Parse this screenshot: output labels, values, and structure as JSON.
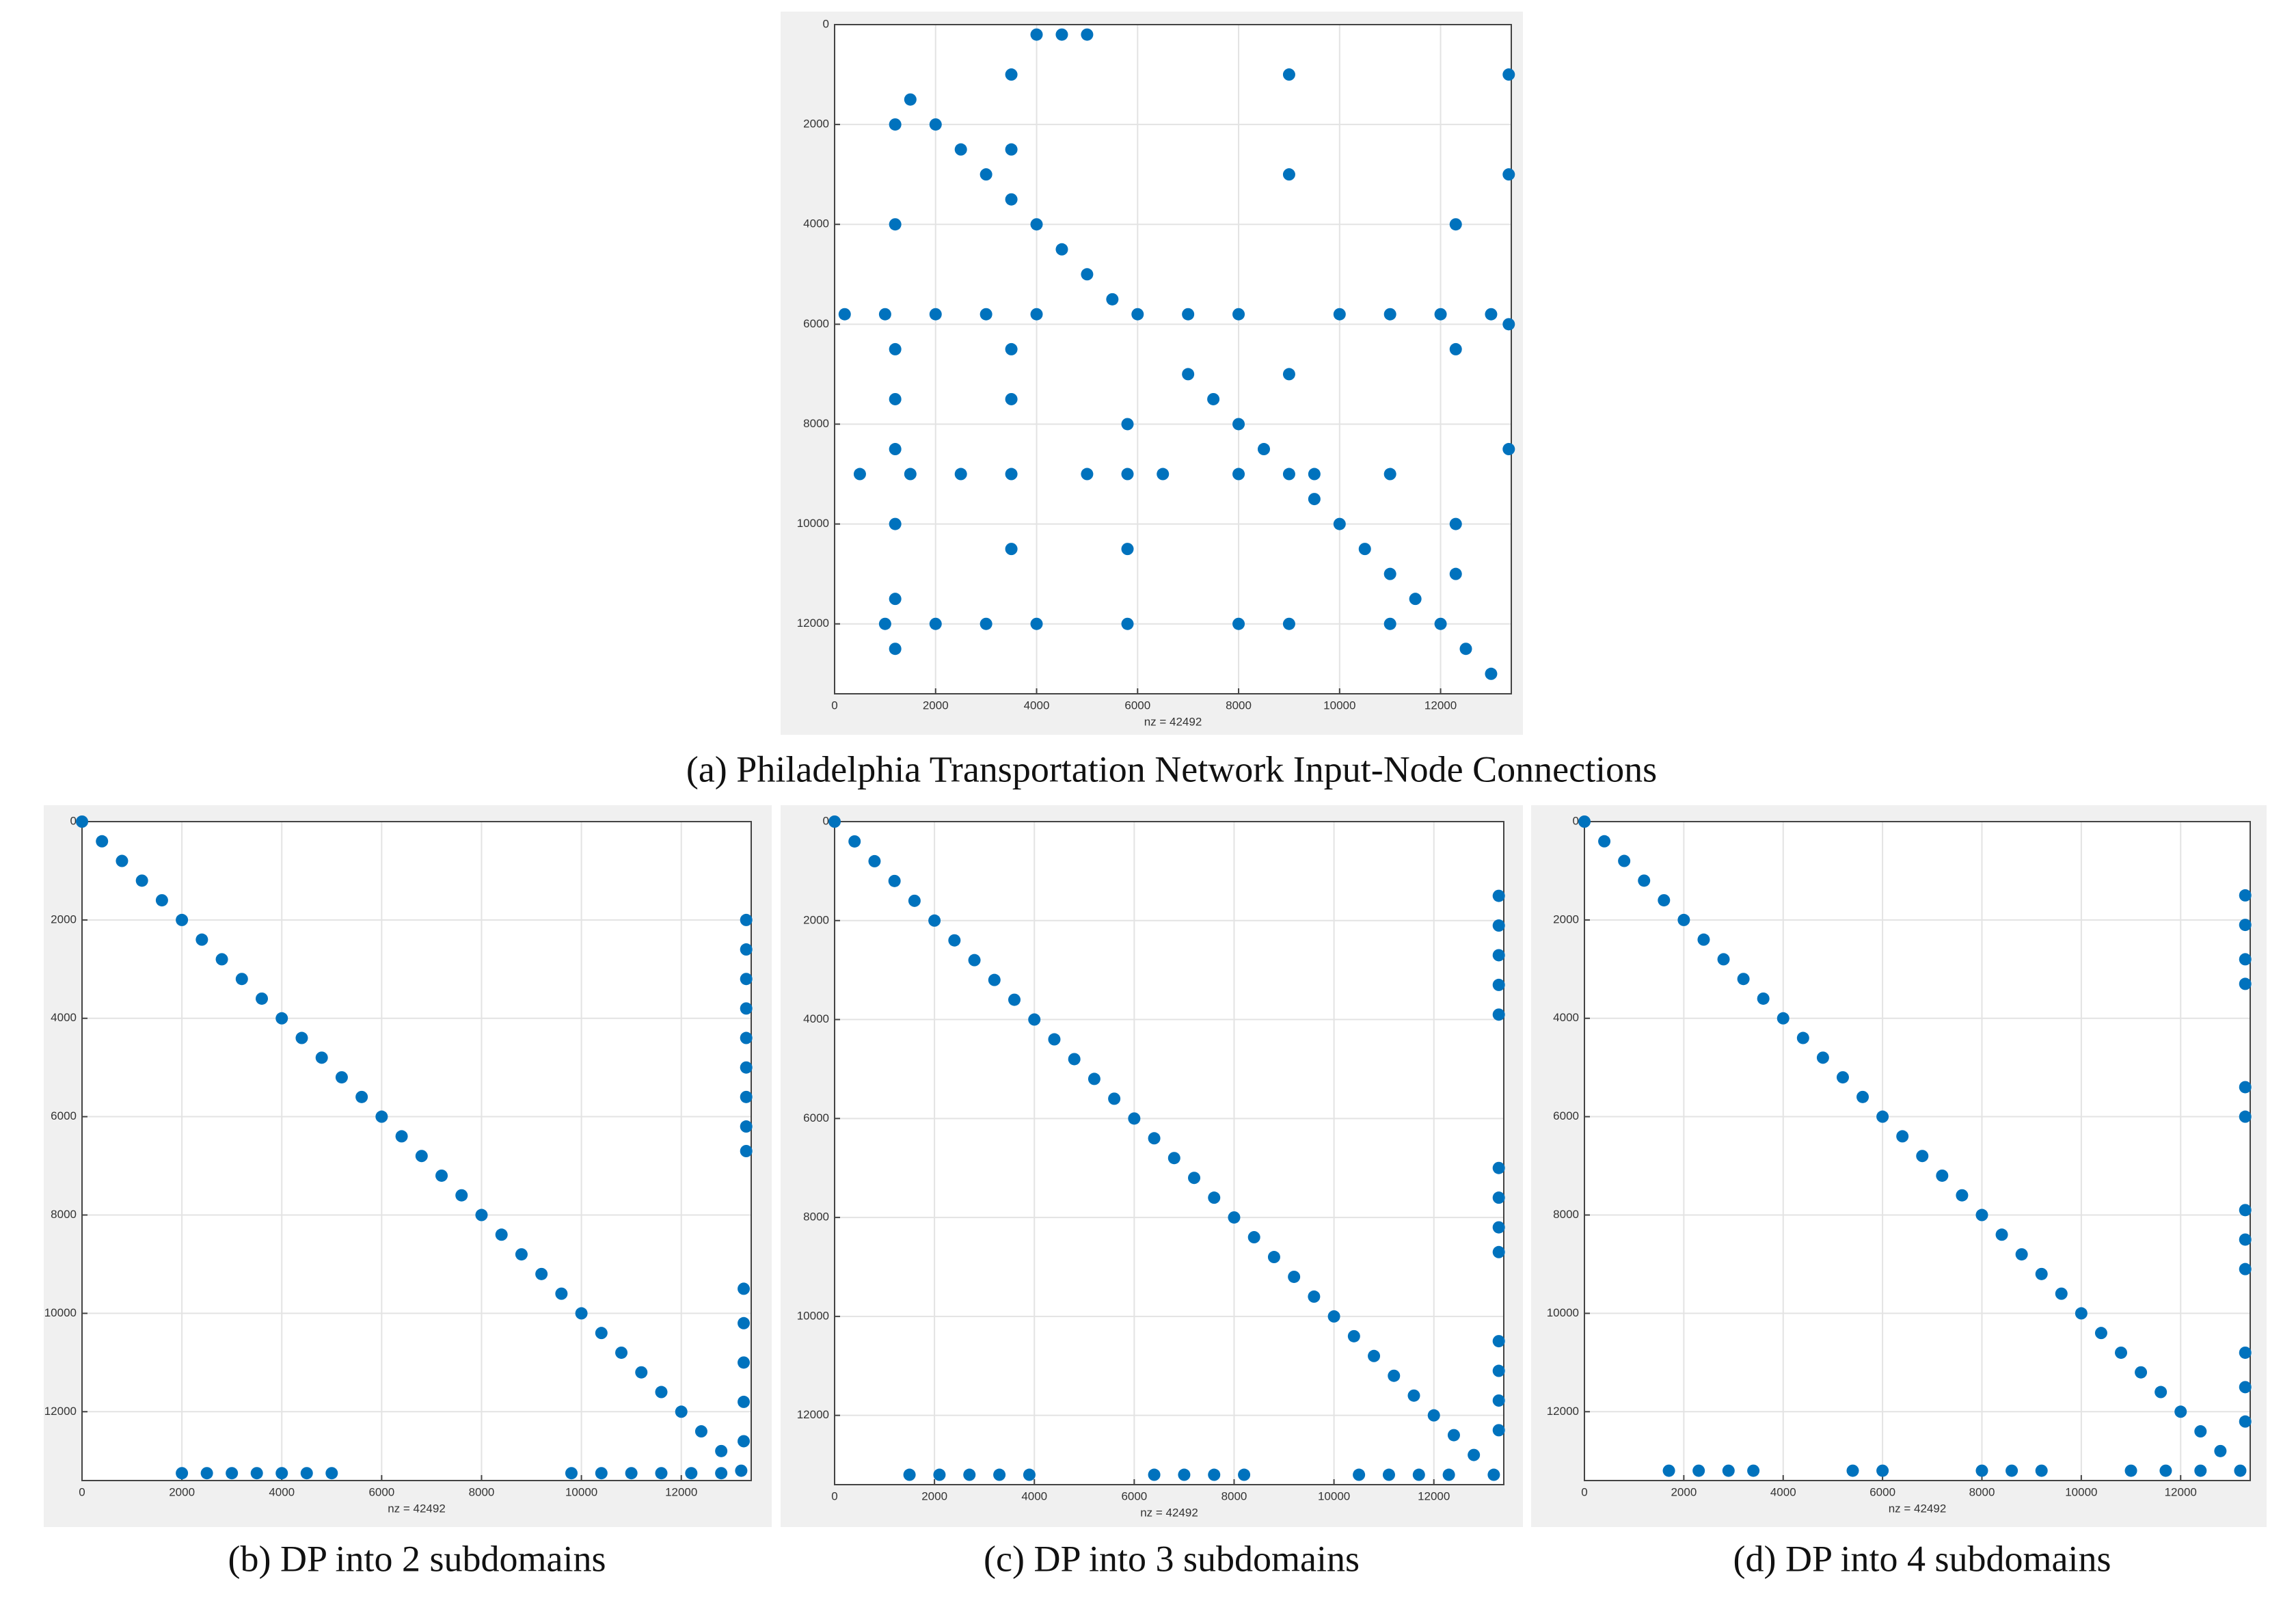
{
  "chart_data": [
    {
      "type": "scatter",
      "caption": "(a) Philadelphia Transportation Network Input-Node Connections",
      "xlabel": "nz = 42492",
      "color": "#0072bd",
      "grid": true,
      "xlim": [
        0,
        13400
      ],
      "ylim": [
        13400,
        0
      ],
      "xticks": [
        0,
        2000,
        4000,
        6000,
        8000,
        10000,
        12000
      ],
      "yticks": [
        0,
        2000,
        4000,
        6000,
        8000,
        10000,
        12000
      ],
      "x": [
        1500,
        2000,
        2500,
        3000,
        3500,
        4000,
        4500,
        5000,
        5500,
        7000,
        7500,
        8000,
        8500,
        9000,
        9500,
        10000,
        10500,
        11000,
        11500,
        12000,
        12500,
        13000,
        200,
        1000,
        2000,
        3000,
        4000,
        6000,
        7000,
        8000,
        10000,
        11000,
        12000,
        13000,
        500,
        1500,
        2500,
        3500,
        5000,
        6500,
        8000,
        9500,
        11000,
        1000,
        2000,
        3000,
        4000,
        8000,
        9000,
        11000,
        1200,
        1200,
        1200,
        1200,
        1200,
        1200,
        1200,
        1200,
        3500,
        3500,
        3500,
        3500,
        3500,
        5800,
        5800,
        5800,
        5800,
        9000,
        9000,
        9000,
        12300,
        12300,
        12300,
        12300,
        13350,
        13350,
        13350,
        13350,
        4000,
        4500,
        5000
      ],
      "y": [
        1500,
        2000,
        2500,
        3000,
        3500,
        4000,
        4500,
        5000,
        5500,
        7000,
        7500,
        8000,
        8500,
        9000,
        9500,
        10000,
        10500,
        11000,
        11500,
        12000,
        12500,
        13000,
        5800,
        5800,
        5800,
        5800,
        5800,
        5800,
        5800,
        5800,
        5800,
        5800,
        5800,
        5800,
        9000,
        9000,
        9000,
        9000,
        9000,
        9000,
        9000,
        9000,
        9000,
        12000,
        12000,
        12000,
        12000,
        12000,
        12000,
        12000,
        2000,
        4000,
        6500,
        7500,
        8500,
        10000,
        11500,
        12500,
        1000,
        2500,
        6500,
        7500,
        10500,
        8000,
        9000,
        10500,
        12000,
        1000,
        3000,
        7000,
        4000,
        6500,
        10000,
        11000,
        1000,
        3000,
        6000,
        8500,
        200,
        200,
        200
      ]
    },
    {
      "type": "scatter",
      "caption": "(b) DP into 2 subdomains",
      "xlabel": "nz = 42492",
      "color": "#0072bd",
      "grid": true,
      "xlim": [
        0,
        13400
      ],
      "ylim": [
        13400,
        0
      ],
      "xticks": [
        0,
        2000,
        4000,
        6000,
        8000,
        10000,
        12000
      ],
      "yticks": [
        0,
        2000,
        4000,
        6000,
        8000,
        10000,
        12000
      ],
      "x": [
        0,
        400,
        800,
        1200,
        1600,
        2000,
        2400,
        2800,
        3200,
        3600,
        4000,
        4400,
        4800,
        5200,
        5600,
        6000,
        6400,
        6800,
        7200,
        7600,
        8000,
        8400,
        8800,
        9200,
        9600,
        10000,
        10400,
        10800,
        11200,
        11600,
        12000,
        12400,
        12800,
        13200,
        13300,
        13300,
        13300,
        13300,
        13300,
        13300,
        13300,
        13300,
        13300,
        13250,
        13250,
        13250,
        13250,
        13250,
        2000,
        2500,
        3000,
        3500,
        4000,
        4500,
        5000,
        9800,
        10400,
        11000,
        11600,
        12200,
        12800
      ],
      "y": [
        0,
        400,
        800,
        1200,
        1600,
        2000,
        2400,
        2800,
        3200,
        3600,
        4000,
        4400,
        4800,
        5200,
        5600,
        6000,
        6400,
        6800,
        7200,
        7600,
        8000,
        8400,
        8800,
        9200,
        9600,
        10000,
        10400,
        10800,
        11200,
        11600,
        12000,
        12400,
        12800,
        13200,
        2000,
        2600,
        3200,
        3800,
        4400,
        5000,
        5600,
        6200,
        6700,
        9500,
        10200,
        11000,
        11800,
        12600,
        13250,
        13250,
        13250,
        13250,
        13250,
        13250,
        13250,
        13250,
        13250,
        13250,
        13250,
        13250,
        13250
      ]
    },
    {
      "type": "scatter",
      "caption": "(c) DP into 3 subdomains",
      "xlabel": "nz = 42492",
      "color": "#0072bd",
      "grid": true,
      "xlim": [
        0,
        13400
      ],
      "ylim": [
        13400,
        0
      ],
      "xticks": [
        0,
        2000,
        4000,
        6000,
        8000,
        10000,
        12000
      ],
      "yticks": [
        0,
        2000,
        4000,
        6000,
        8000,
        10000,
        12000
      ],
      "x": [
        0,
        400,
        800,
        1200,
        1600,
        2000,
        2400,
        2800,
        3200,
        3600,
        4000,
        4400,
        4800,
        5200,
        5600,
        6000,
        6400,
        6800,
        7200,
        7600,
        8000,
        8400,
        8800,
        9200,
        9600,
        10000,
        10400,
        10800,
        11200,
        11600,
        12000,
        12400,
        12800,
        13200,
        13300,
        13300,
        13300,
        13300,
        13300,
        13300,
        13300,
        13300,
        13300,
        13300,
        13300,
        13300,
        13300,
        1500,
        2100,
        2700,
        3300,
        3900,
        6400,
        7000,
        7600,
        8200,
        10500,
        11100,
        11700,
        12300
      ],
      "y": [
        0,
        400,
        800,
        1200,
        1600,
        2000,
        2400,
        2800,
        3200,
        3600,
        4000,
        4400,
        4800,
        5200,
        5600,
        6000,
        6400,
        6800,
        7200,
        7600,
        8000,
        8400,
        8800,
        9200,
        9600,
        10000,
        10400,
        10800,
        11200,
        11600,
        12000,
        12400,
        12800,
        13200,
        1500,
        2100,
        2700,
        3300,
        3900,
        7000,
        7600,
        8200,
        8700,
        10500,
        11100,
        11700,
        12300,
        13200,
        13200,
        13200,
        13200,
        13200,
        13200,
        13200,
        13200,
        13200,
        13200,
        13200,
        13200,
        13200
      ]
    },
    {
      "type": "scatter",
      "caption": "(d) DP into 4 subdomains",
      "xlabel": "nz = 42492",
      "color": "#0072bd",
      "grid": true,
      "xlim": [
        0,
        13400
      ],
      "ylim": [
        13400,
        0
      ],
      "xticks": [
        0,
        2000,
        4000,
        6000,
        8000,
        10000,
        12000
      ],
      "yticks": [
        0,
        2000,
        4000,
        6000,
        8000,
        10000,
        12000
      ],
      "x": [
        0,
        400,
        800,
        1200,
        1600,
        2000,
        2400,
        2800,
        3200,
        3600,
        4000,
        4400,
        4800,
        5200,
        5600,
        6000,
        6400,
        6800,
        7200,
        7600,
        8000,
        8400,
        8800,
        9200,
        9600,
        10000,
        10400,
        10800,
        11200,
        11600,
        12000,
        12400,
        12800,
        13200,
        13300,
        13300,
        13300,
        13300,
        13300,
        13300,
        13300,
        13300,
        13300,
        13300,
        13300,
        13300,
        1700,
        2300,
        2900,
        3400,
        5400,
        6000,
        8000,
        8600,
        9200,
        11000,
        11700,
        12400
      ],
      "y": [
        0,
        400,
        800,
        1200,
        1600,
        2000,
        2400,
        2800,
        3200,
        3600,
        4000,
        4400,
        4800,
        5200,
        5600,
        6000,
        6400,
        6800,
        7200,
        7600,
        8000,
        8400,
        8800,
        9200,
        9600,
        10000,
        10400,
        10800,
        11200,
        11600,
        12000,
        12400,
        12800,
        13200,
        1500,
        2100,
        2800,
        3300,
        5400,
        6000,
        7900,
        8500,
        9100,
        10800,
        11500,
        12200,
        13200,
        13200,
        13200,
        13200,
        13200,
        13200,
        13200,
        13200,
        13200,
        13200,
        13200,
        13200
      ]
    }
  ]
}
